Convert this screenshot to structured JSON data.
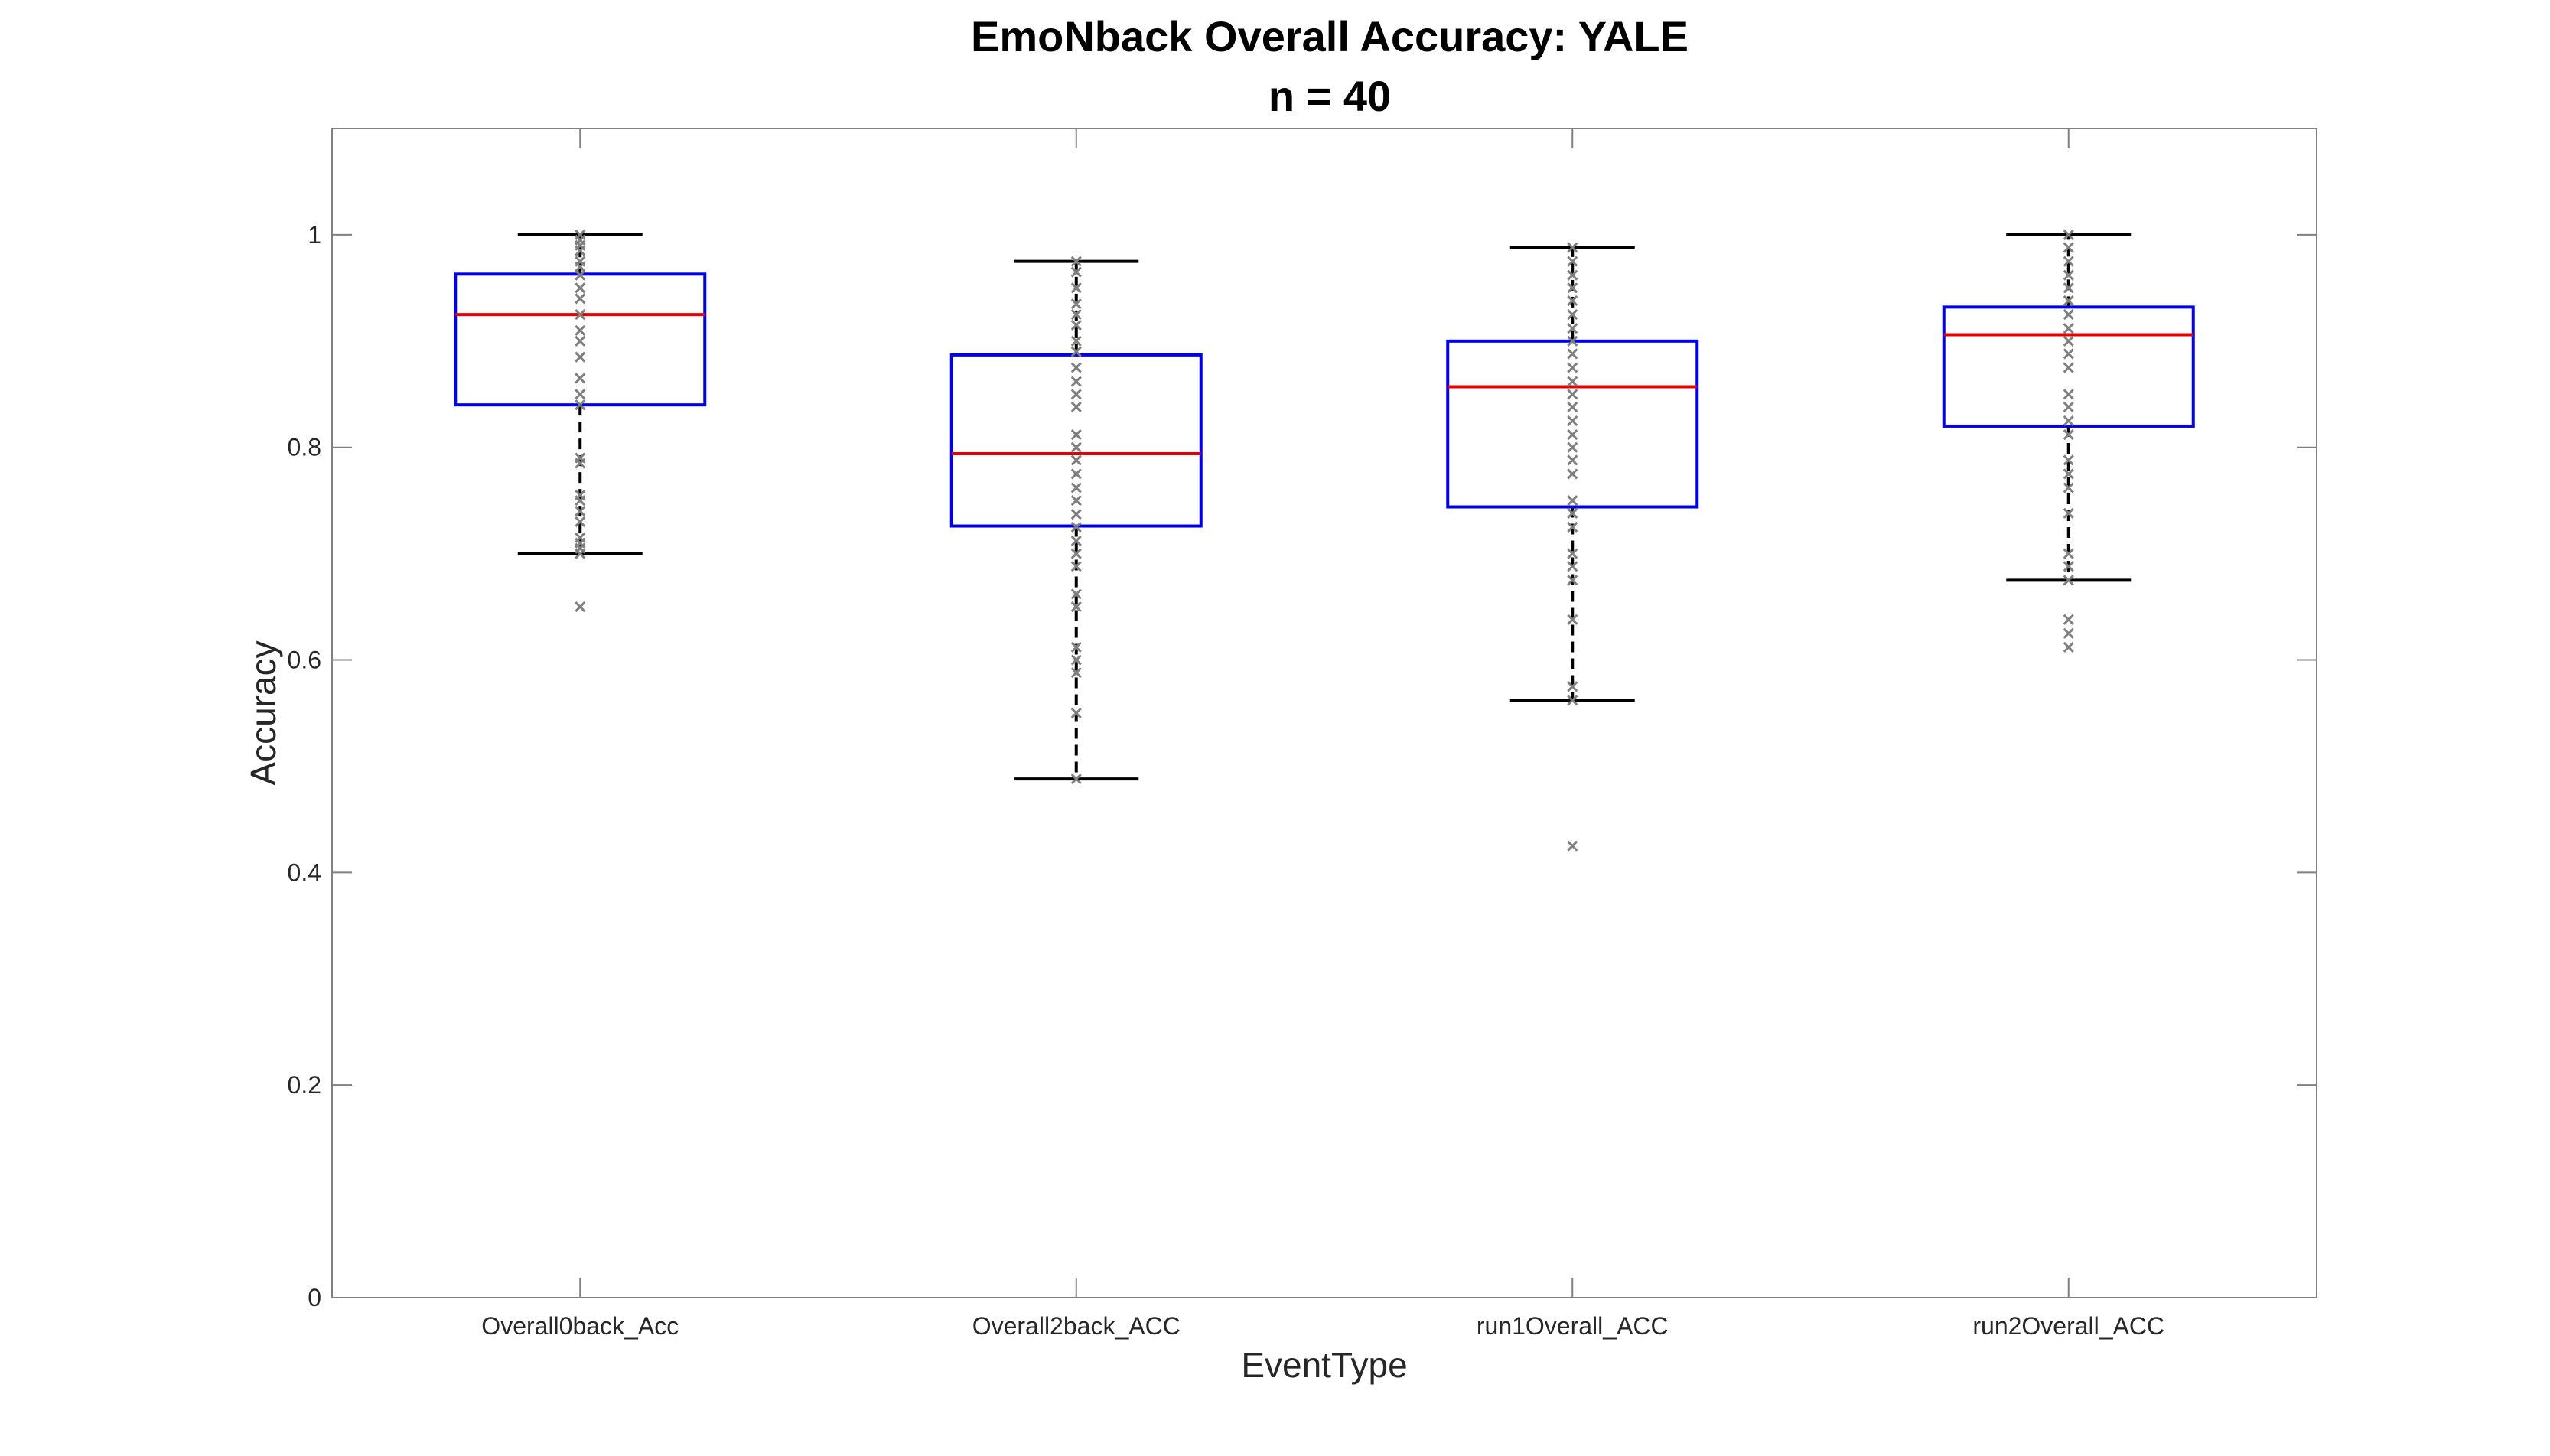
{
  "chart_data": {
    "type": "box",
    "title": "EmoNback Overall Accuracy: YALE",
    "subtitle": "n = 40",
    "xlabel": "EventType",
    "ylabel": "Accuracy",
    "ylim": [
      0,
      1.1
    ],
    "yticks": [
      0,
      0.2,
      0.4,
      0.6,
      0.8,
      1
    ],
    "ytick_labels": [
      "0",
      "0.2",
      "0.4",
      "0.6",
      "0.8",
      "1"
    ],
    "grid": false,
    "colors": {
      "box": "#0000e6",
      "median": "#e60000",
      "whisker": "#000000",
      "points": "#7f7f7f",
      "axes": "#808080"
    },
    "categories": [
      "Overall0back_Acc",
      "Overall2back_ACC",
      "run1Overall_ACC",
      "run2Overall_ACC"
    ],
    "boxes": [
      {
        "category": "Overall0back_Acc",
        "whisker_low": 0.7,
        "q1": 0.84,
        "median": 0.925,
        "q3": 0.963,
        "whisker_high": 1.0,
        "outliers": [
          0.65
        ],
        "points": [
          1.0,
          0.995,
          0.99,
          0.985,
          0.975,
          0.97,
          0.962,
          0.95,
          0.94,
          0.925,
          0.91,
          0.9,
          0.885,
          0.865,
          0.85,
          0.84,
          0.79,
          0.785,
          0.755,
          0.75,
          0.74,
          0.73,
          0.715,
          0.71,
          0.705,
          0.7,
          0.65
        ]
      },
      {
        "category": "Overall2back_ACC",
        "whisker_low": 0.488,
        "q1": 0.726,
        "median": 0.794,
        "q3": 0.887,
        "whisker_high": 0.975,
        "outliers": [],
        "points": [
          0.975,
          0.965,
          0.95,
          0.935,
          0.925,
          0.915,
          0.9,
          0.89,
          0.875,
          0.862,
          0.85,
          0.838,
          0.812,
          0.8,
          0.788,
          0.775,
          0.762,
          0.75,
          0.737,
          0.725,
          0.712,
          0.7,
          0.688,
          0.662,
          0.65,
          0.612,
          0.6,
          0.588,
          0.55,
          0.488
        ]
      },
      {
        "category": "run1Overall_ACC",
        "whisker_low": 0.562,
        "q1": 0.744,
        "median": 0.857,
        "q3": 0.9,
        "whisker_high": 0.988,
        "outliers": [
          0.425
        ],
        "points": [
          0.988,
          0.975,
          0.962,
          0.95,
          0.938,
          0.925,
          0.912,
          0.9,
          0.888,
          0.875,
          0.862,
          0.85,
          0.838,
          0.825,
          0.812,
          0.8,
          0.788,
          0.775,
          0.75,
          0.738,
          0.725,
          0.7,
          0.688,
          0.675,
          0.638,
          0.575,
          0.562,
          0.425
        ]
      },
      {
        "category": "run2Overall_ACC",
        "whisker_low": 0.675,
        "q1": 0.82,
        "median": 0.906,
        "q3": 0.932,
        "whisker_high": 1.0,
        "outliers": [
          0.638,
          0.625,
          0.612
        ],
        "points": [
          1.0,
          0.988,
          0.975,
          0.962,
          0.95,
          0.938,
          0.925,
          0.912,
          0.9,
          0.888,
          0.875,
          0.85,
          0.838,
          0.825,
          0.812,
          0.788,
          0.775,
          0.762,
          0.738,
          0.7,
          0.688,
          0.675,
          0.638,
          0.625,
          0.612
        ]
      }
    ]
  }
}
